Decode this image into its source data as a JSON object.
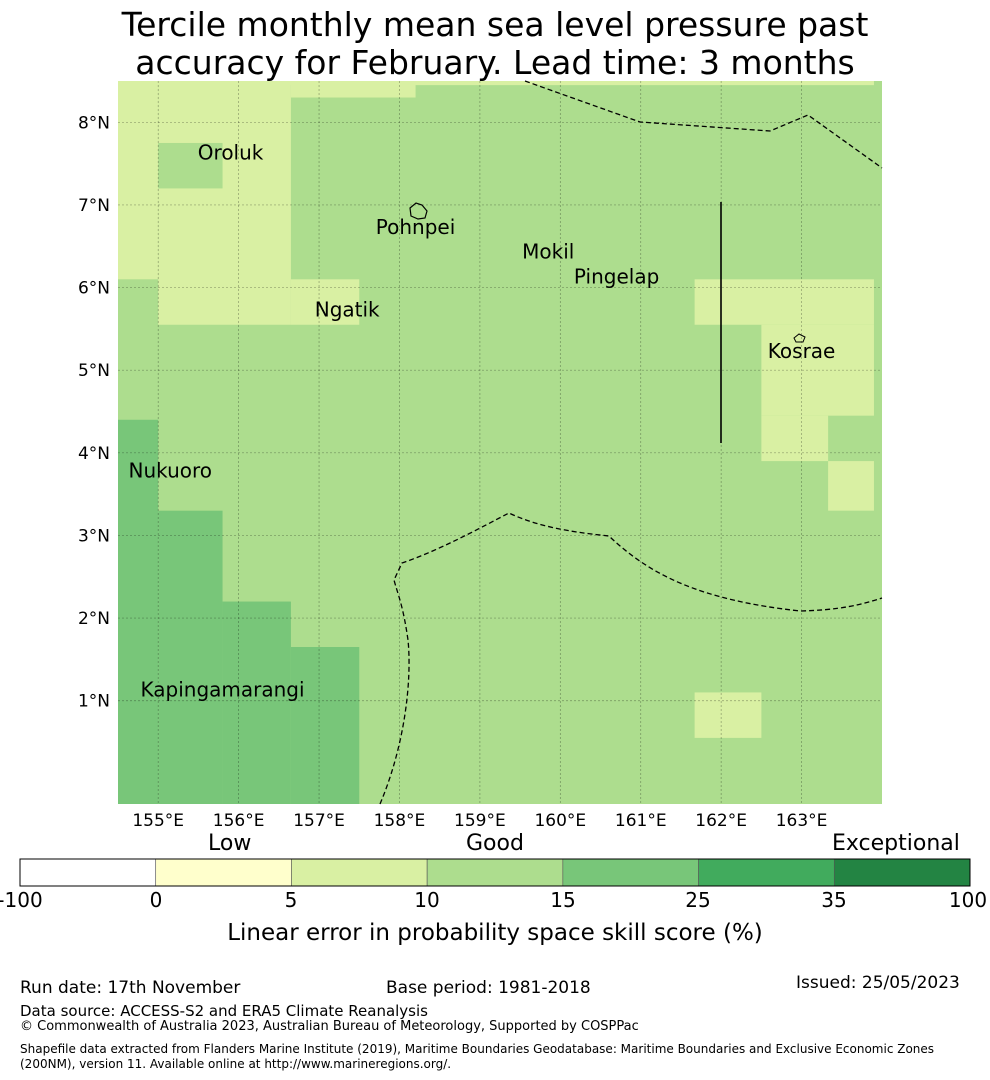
{
  "title": {
    "line1": "Tercile monthly mean sea level pressure past",
    "line2": "accuracy for February. Lead time: 3 months"
  },
  "map": {
    "lon_range": [
      154.5,
      164.0
    ],
    "lat_range": [
      -0.25,
      8.5
    ],
    "lon_ticks": [
      {
        "value": 155,
        "label": "155°E"
      },
      {
        "value": 156,
        "label": "156°E"
      },
      {
        "value": 157,
        "label": "157°E"
      },
      {
        "value": 158,
        "label": "158°E"
      },
      {
        "value": 159,
        "label": "159°E"
      },
      {
        "value": 160,
        "label": "160°E"
      },
      {
        "value": 161,
        "label": "161°E"
      },
      {
        "value": 162,
        "label": "162°E"
      },
      {
        "value": 163,
        "label": "163°E"
      }
    ],
    "lat_ticks": [
      {
        "value": 1,
        "label": "1°N"
      },
      {
        "value": 2,
        "label": "2°N"
      },
      {
        "value": 3,
        "label": "3°N"
      },
      {
        "value": 4,
        "label": "4°N"
      },
      {
        "value": 5,
        "label": "5°N"
      },
      {
        "value": 6,
        "label": "6°N"
      },
      {
        "value": 7,
        "label": "7°N"
      },
      {
        "value": 8,
        "label": "8°N"
      }
    ],
    "places": [
      {
        "name": "Oroluk",
        "lon": 155.9,
        "lat": 7.55
      },
      {
        "name": "Pohnpei",
        "lon": 158.2,
        "lat": 6.65
      },
      {
        "name": "Mokil",
        "lon": 159.85,
        "lat": 6.35
      },
      {
        "name": "Pingelap",
        "lon": 160.7,
        "lat": 6.05
      },
      {
        "name": "Ngatik",
        "lon": 157.35,
        "lat": 5.65
      },
      {
        "name": "Kosrae",
        "lon": 163.0,
        "lat": 5.15
      },
      {
        "name": "Nukuoro",
        "lon": 155.15,
        "lat": 3.7
      },
      {
        "name": "Kapingamarangi",
        "lon": 155.8,
        "lat": 1.05
      }
    ],
    "skill_regions": [
      {
        "class": "5-10",
        "cells": [
          [
            154.5,
            8.45,
            163.9,
            8.5
          ],
          [
            154.5,
            8.5,
            158.2,
            8.45
          ],
          [
            154.5,
            6.1,
            155.0,
            8.5
          ],
          [
            155.0,
            5.55,
            156.65,
            8.5
          ],
          [
            156.65,
            5.55,
            157.5,
            6.1
          ],
          [
            156.65,
            8.3,
            158.2,
            8.5
          ],
          [
            161.67,
            5.55,
            163.9,
            6.1
          ],
          [
            162.5,
            4.45,
            163.9,
            5.55
          ],
          [
            163.33,
            3.3,
            163.9,
            3.9
          ],
          [
            162.5,
            3.9,
            163.33,
            4.45
          ],
          [
            161.67,
            0.55,
            162.5,
            1.1
          ]
        ]
      },
      {
        "class": "10-15",
        "cells": [
          [
            155.0,
            7.2,
            155.8,
            7.75
          ]
        ]
      },
      {
        "class": "15-25",
        "cells": [
          [
            154.5,
            -0.25,
            155.0,
            4.4
          ],
          [
            155.0,
            -0.25,
            155.8,
            3.3
          ],
          [
            155.8,
            -0.25,
            156.65,
            2.2
          ],
          [
            156.65,
            -0.25,
            157.5,
            1.65
          ]
        ]
      }
    ],
    "boundary_label": "EEZ boundary"
  },
  "colorbar": {
    "headings": {
      "low": "Low",
      "good": "Good",
      "exceptional": "Exceptional"
    },
    "ticks": [
      "-100",
      "0",
      "5",
      "10",
      "15",
      "25",
      "35",
      "100"
    ],
    "colors": [
      "#ffffff",
      "#ffffcc",
      "#d9f0a3",
      "#addd8e",
      "#78c679",
      "#41ab5d",
      "#238443"
    ],
    "label": "Linear error in probability space skill score (%)"
  },
  "footer": {
    "run_date": "Run date: 17th November",
    "base_period": "Base period: 1981-2018",
    "issued": "Issued: 25/05/2023",
    "data_source": "Data source: ACCESS-S2 and ERA5 Climate Reanalysis",
    "copyright": "© Commonwealth of Australia 2023, Australian Bureau of Meteorology, Supported by COSPPac",
    "shapefile_line1": "Shapefile data extracted from Flanders Marine Institute (2019), Maritime Boundaries Geodatabase: Maritime Boundaries and Exclusive Economic Zones",
    "shapefile_line2": "(200NM), version 11. Available online at http://www.marineregions.org/."
  }
}
